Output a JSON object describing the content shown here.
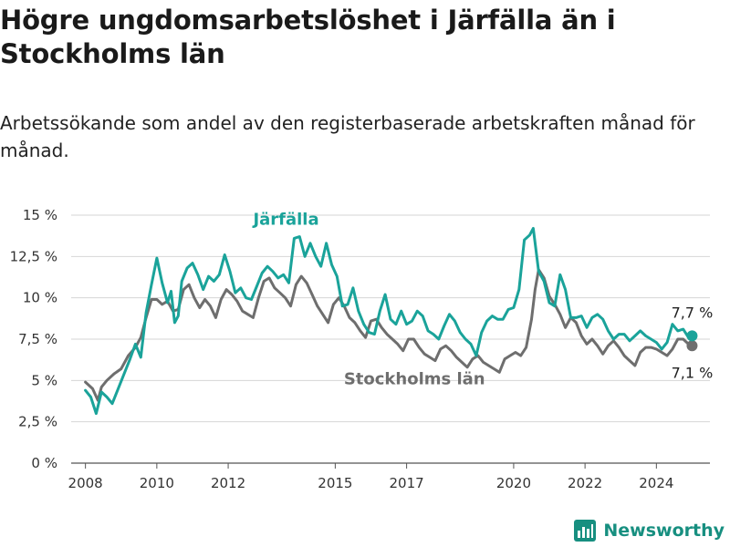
{
  "header": {
    "title": "Högre ungdomsarbetslöshet i Järfälla än i Stockholms län",
    "subtitle": "Arbetssökande som andel av den registerbaserade arbetskraften månad för månad."
  },
  "brand": {
    "name": "Newsworthy",
    "icon": "bar-chart-logo-icon",
    "color": "#178f80"
  },
  "chart_data": {
    "type": "line",
    "title": "",
    "xlabel": "",
    "ylabel": "",
    "xlim": [
      2007.6,
      2025.5
    ],
    "ylim": [
      0,
      15
    ],
    "grid": true,
    "x_ticks": [
      2008,
      2010,
      2012,
      2015,
      2017,
      2020,
      2022,
      2024
    ],
    "x_tick_labels": [
      "2008",
      "2010",
      "2012",
      "2015",
      "2017",
      "2020",
      "2022",
      "2024"
    ],
    "y_ticks": [
      0,
      2.5,
      5,
      7.5,
      10,
      12.5,
      15
    ],
    "y_tick_labels": [
      "0 %",
      "2,5 %",
      "5 %",
      "7,5 %",
      "10 %",
      "12,5 %",
      "15 %"
    ],
    "series": [
      {
        "name": "Stockholms län",
        "color": "#6e6e6e",
        "end_label": "7,1 %",
        "points": [
          [
            2008.0,
            4.9
          ],
          [
            2008.2,
            4.5
          ],
          [
            2008.35,
            3.8
          ],
          [
            2008.45,
            4.6
          ],
          [
            2008.6,
            5.0
          ],
          [
            2008.8,
            5.4
          ],
          [
            2009.0,
            5.7
          ],
          [
            2009.2,
            6.5
          ],
          [
            2009.4,
            7.0
          ],
          [
            2009.55,
            7.6
          ],
          [
            2009.7,
            8.8
          ],
          [
            2009.85,
            9.9
          ],
          [
            2010.0,
            9.9
          ],
          [
            2010.15,
            9.6
          ],
          [
            2010.3,
            9.8
          ],
          [
            2010.45,
            9.2
          ],
          [
            2010.6,
            9.3
          ],
          [
            2010.75,
            10.5
          ],
          [
            2010.9,
            10.8
          ],
          [
            2011.05,
            10.0
          ],
          [
            2011.2,
            9.4
          ],
          [
            2011.35,
            9.9
          ],
          [
            2011.5,
            9.5
          ],
          [
            2011.65,
            8.8
          ],
          [
            2011.8,
            9.9
          ],
          [
            2011.95,
            10.5
          ],
          [
            2012.1,
            10.2
          ],
          [
            2012.25,
            9.8
          ],
          [
            2012.4,
            9.2
          ],
          [
            2012.55,
            9.0
          ],
          [
            2012.7,
            8.8
          ],
          [
            2012.85,
            10.0
          ],
          [
            2013.0,
            11.0
          ],
          [
            2013.15,
            11.2
          ],
          [
            2013.3,
            10.6
          ],
          [
            2013.45,
            10.3
          ],
          [
            2013.6,
            10.0
          ],
          [
            2013.75,
            9.5
          ],
          [
            2013.9,
            10.8
          ],
          [
            2014.05,
            11.3
          ],
          [
            2014.2,
            10.9
          ],
          [
            2014.35,
            10.2
          ],
          [
            2014.5,
            9.5
          ],
          [
            2014.65,
            9.0
          ],
          [
            2014.8,
            8.5
          ],
          [
            2014.95,
            9.6
          ],
          [
            2015.1,
            10.0
          ],
          [
            2015.25,
            9.5
          ],
          [
            2015.4,
            8.8
          ],
          [
            2015.55,
            8.5
          ],
          [
            2015.7,
            8.0
          ],
          [
            2015.85,
            7.6
          ],
          [
            2016.0,
            8.6
          ],
          [
            2016.15,
            8.7
          ],
          [
            2016.3,
            8.2
          ],
          [
            2016.45,
            7.8
          ],
          [
            2016.6,
            7.5
          ],
          [
            2016.75,
            7.2
          ],
          [
            2016.9,
            6.8
          ],
          [
            2017.05,
            7.5
          ],
          [
            2017.2,
            7.5
          ],
          [
            2017.35,
            7.0
          ],
          [
            2017.5,
            6.6
          ],
          [
            2017.65,
            6.4
          ],
          [
            2017.8,
            6.2
          ],
          [
            2017.95,
            6.9
          ],
          [
            2018.1,
            7.1
          ],
          [
            2018.25,
            6.8
          ],
          [
            2018.4,
            6.4
          ],
          [
            2018.55,
            6.1
          ],
          [
            2018.7,
            5.8
          ],
          [
            2018.85,
            6.3
          ],
          [
            2019.0,
            6.5
          ],
          [
            2019.15,
            6.1
          ],
          [
            2019.3,
            5.9
          ],
          [
            2019.45,
            5.7
          ],
          [
            2019.6,
            5.5
          ],
          [
            2019.75,
            6.3
          ],
          [
            2019.9,
            6.5
          ],
          [
            2020.05,
            6.7
          ],
          [
            2020.2,
            6.5
          ],
          [
            2020.35,
            7.0
          ],
          [
            2020.5,
            8.7
          ],
          [
            2020.6,
            10.5
          ],
          [
            2020.7,
            11.7
          ],
          [
            2020.85,
            11.2
          ],
          [
            2021.0,
            10.1
          ],
          [
            2021.15,
            9.6
          ],
          [
            2021.3,
            9.0
          ],
          [
            2021.45,
            8.2
          ],
          [
            2021.6,
            8.8
          ],
          [
            2021.75,
            8.5
          ],
          [
            2021.9,
            7.7
          ],
          [
            2022.05,
            7.2
          ],
          [
            2022.2,
            7.5
          ],
          [
            2022.35,
            7.1
          ],
          [
            2022.5,
            6.6
          ],
          [
            2022.65,
            7.1
          ],
          [
            2022.8,
            7.4
          ],
          [
            2022.95,
            7.0
          ],
          [
            2023.1,
            6.5
          ],
          [
            2023.25,
            6.2
          ],
          [
            2023.4,
            5.9
          ],
          [
            2023.55,
            6.7
          ],
          [
            2023.7,
            7.0
          ],
          [
            2023.85,
            7.0
          ],
          [
            2024.0,
            6.9
          ],
          [
            2024.15,
            6.7
          ],
          [
            2024.3,
            6.5
          ],
          [
            2024.45,
            6.9
          ],
          [
            2024.6,
            7.5
          ],
          [
            2024.75,
            7.5
          ],
          [
            2024.9,
            7.2
          ],
          [
            2025.0,
            7.1
          ]
        ]
      },
      {
        "name": "Järfälla",
        "color": "#1aa39a",
        "end_label": "7,7 %",
        "points": [
          [
            2008.0,
            4.4
          ],
          [
            2008.15,
            4.0
          ],
          [
            2008.3,
            3.0
          ],
          [
            2008.45,
            4.3
          ],
          [
            2008.6,
            4.0
          ],
          [
            2008.75,
            3.6
          ],
          [
            2008.9,
            4.4
          ],
          [
            2009.1,
            5.5
          ],
          [
            2009.25,
            6.3
          ],
          [
            2009.4,
            7.2
          ],
          [
            2009.55,
            6.4
          ],
          [
            2009.7,
            9.1
          ],
          [
            2009.85,
            10.8
          ],
          [
            2010.0,
            12.4
          ],
          [
            2010.15,
            10.9
          ],
          [
            2010.3,
            9.7
          ],
          [
            2010.4,
            10.4
          ],
          [
            2010.5,
            8.5
          ],
          [
            2010.6,
            8.9
          ],
          [
            2010.7,
            11.0
          ],
          [
            2010.85,
            11.8
          ],
          [
            2011.0,
            12.1
          ],
          [
            2011.15,
            11.4
          ],
          [
            2011.3,
            10.5
          ],
          [
            2011.45,
            11.3
          ],
          [
            2011.6,
            11.0
          ],
          [
            2011.75,
            11.4
          ],
          [
            2011.9,
            12.6
          ],
          [
            2012.05,
            11.6
          ],
          [
            2012.2,
            10.3
          ],
          [
            2012.35,
            10.6
          ],
          [
            2012.5,
            10.0
          ],
          [
            2012.65,
            9.9
          ],
          [
            2012.8,
            10.7
          ],
          [
            2012.95,
            11.5
          ],
          [
            2013.1,
            11.9
          ],
          [
            2013.25,
            11.6
          ],
          [
            2013.4,
            11.2
          ],
          [
            2013.55,
            11.4
          ],
          [
            2013.7,
            10.9
          ],
          [
            2013.85,
            13.6
          ],
          [
            2014.0,
            13.7
          ],
          [
            2014.15,
            12.5
          ],
          [
            2014.3,
            13.3
          ],
          [
            2014.45,
            12.5
          ],
          [
            2014.6,
            11.9
          ],
          [
            2014.75,
            13.3
          ],
          [
            2014.9,
            12.0
          ],
          [
            2015.05,
            11.3
          ],
          [
            2015.2,
            9.5
          ],
          [
            2015.35,
            9.6
          ],
          [
            2015.5,
            10.6
          ],
          [
            2015.65,
            9.2
          ],
          [
            2015.8,
            8.4
          ],
          [
            2015.95,
            7.9
          ],
          [
            2016.1,
            7.8
          ],
          [
            2016.25,
            9.2
          ],
          [
            2016.4,
            10.2
          ],
          [
            2016.55,
            8.7
          ],
          [
            2016.7,
            8.4
          ],
          [
            2016.85,
            9.2
          ],
          [
            2017.0,
            8.4
          ],
          [
            2017.15,
            8.6
          ],
          [
            2017.3,
            9.2
          ],
          [
            2017.45,
            8.9
          ],
          [
            2017.6,
            8.0
          ],
          [
            2017.75,
            7.8
          ],
          [
            2017.9,
            7.5
          ],
          [
            2018.05,
            8.3
          ],
          [
            2018.2,
            9.0
          ],
          [
            2018.35,
            8.6
          ],
          [
            2018.5,
            7.9
          ],
          [
            2018.65,
            7.5
          ],
          [
            2018.8,
            7.2
          ],
          [
            2018.95,
            6.5
          ],
          [
            2019.1,
            7.9
          ],
          [
            2019.25,
            8.6
          ],
          [
            2019.4,
            8.9
          ],
          [
            2019.55,
            8.7
          ],
          [
            2019.7,
            8.7
          ],
          [
            2019.85,
            9.3
          ],
          [
            2020.0,
            9.4
          ],
          [
            2020.15,
            10.5
          ],
          [
            2020.3,
            13.5
          ],
          [
            2020.45,
            13.8
          ],
          [
            2020.55,
            14.2
          ],
          [
            2020.7,
            11.6
          ],
          [
            2020.85,
            11.0
          ],
          [
            2021.0,
            9.7
          ],
          [
            2021.15,
            9.5
          ],
          [
            2021.3,
            11.4
          ],
          [
            2021.45,
            10.5
          ],
          [
            2021.6,
            8.8
          ],
          [
            2021.75,
            8.8
          ],
          [
            2021.9,
            8.9
          ],
          [
            2022.05,
            8.2
          ],
          [
            2022.2,
            8.8
          ],
          [
            2022.35,
            9.0
          ],
          [
            2022.5,
            8.7
          ],
          [
            2022.65,
            8.0
          ],
          [
            2022.8,
            7.5
          ],
          [
            2022.95,
            7.8
          ],
          [
            2023.1,
            7.8
          ],
          [
            2023.25,
            7.4
          ],
          [
            2023.4,
            7.7
          ],
          [
            2023.55,
            8.0
          ],
          [
            2023.7,
            7.7
          ],
          [
            2023.85,
            7.5
          ],
          [
            2024.0,
            7.3
          ],
          [
            2024.15,
            6.9
          ],
          [
            2024.3,
            7.3
          ],
          [
            2024.45,
            8.4
          ],
          [
            2024.6,
            8.0
          ],
          [
            2024.75,
            8.1
          ],
          [
            2024.9,
            7.6
          ],
          [
            2025.0,
            7.7
          ]
        ]
      }
    ]
  }
}
